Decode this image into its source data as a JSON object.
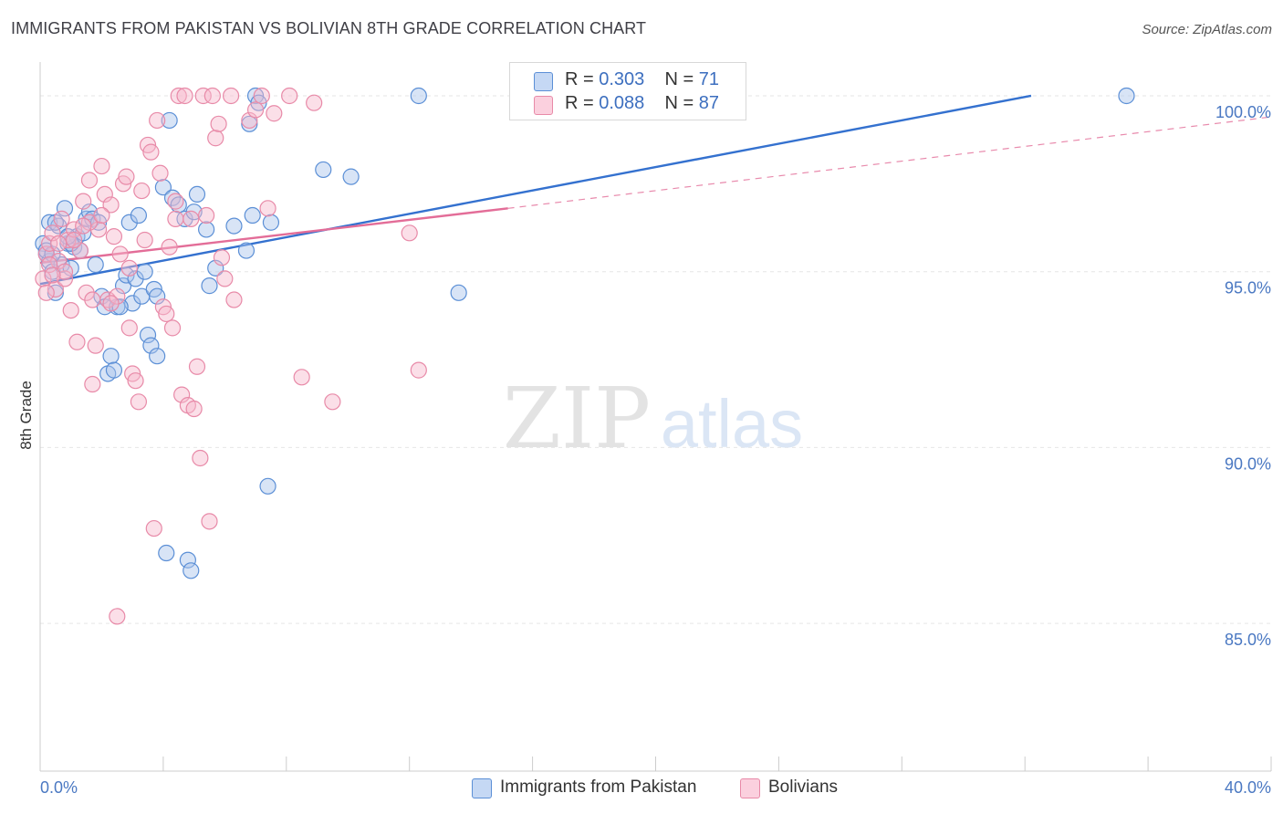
{
  "title": "IMMIGRANTS FROM PAKISTAN VS BOLIVIAN 8TH GRADE CORRELATION CHART",
  "source": "Source: ZipAtlas.com",
  "watermark": {
    "zip": "ZIP",
    "atlas": "atlas"
  },
  "legend": {
    "rows": [
      {
        "r_label": "R =",
        "r_value": "0.303",
        "n_label": "N =",
        "n_value": "71"
      },
      {
        "r_label": "R =",
        "r_value": "0.088",
        "n_label": "N =",
        "n_value": "87"
      }
    ]
  },
  "bottom_legend": [
    "Immigrants from Pakistan",
    "Bolivians"
  ],
  "colors": {
    "blue_fill": "#a9c4ec",
    "blue_stroke": "#5b8fd6",
    "blue_line": "#3471cf",
    "pink_fill": "#f6b9cc",
    "pink_stroke": "#e88aa8",
    "pink_line": "#e36d98",
    "tick_text": "#4a78c2",
    "grid": "#e6e6e6"
  },
  "chart_data": {
    "type": "scatter",
    "title": "IMMIGRANTS FROM PAKISTAN VS BOLIVIAN 8TH GRADE CORRELATION CHART",
    "xlabel": "",
    "ylabel": "8th Grade",
    "xlim": [
      0,
      40
    ],
    "ylim": [
      80.8,
      100.7
    ],
    "x_tick_labels": [
      "0.0%",
      "40.0%"
    ],
    "y_ticks": [
      100,
      95,
      90,
      85
    ],
    "y_tick_labels": [
      "100.0%",
      "95.0%",
      "90.0%",
      "85.0%"
    ],
    "series": [
      {
        "name": "Immigrants from Pakistan",
        "R": 0.303,
        "N": 71,
        "trend": {
          "x0": 0,
          "y0": 94.65,
          "x1": 32.2,
          "y1": 100.0,
          "style": "solid",
          "x_end": 32.2
        },
        "points": [
          [
            0.1,
            95.8
          ],
          [
            0.2,
            95.5
          ],
          [
            0.3,
            96.4
          ],
          [
            0.3,
            95.3
          ],
          [
            0.4,
            95.0
          ],
          [
            0.5,
            94.4
          ],
          [
            0.6,
            96.3
          ],
          [
            0.7,
            95.2
          ],
          [
            0.8,
            96.8
          ],
          [
            0.9,
            95.8
          ],
          [
            1.0,
            95.1
          ],
          [
            1.1,
            95.7
          ],
          [
            1.2,
            96.0
          ],
          [
            1.3,
            95.6
          ],
          [
            1.4,
            96.1
          ],
          [
            1.5,
            96.5
          ],
          [
            1.6,
            96.7
          ],
          [
            1.7,
            96.5
          ],
          [
            1.8,
            95.2
          ],
          [
            2.0,
            94.3
          ],
          [
            2.1,
            94.0
          ],
          [
            2.2,
            92.1
          ],
          [
            2.3,
            92.6
          ],
          [
            2.4,
            92.2
          ],
          [
            2.5,
            94.0
          ],
          [
            2.7,
            94.6
          ],
          [
            2.8,
            94.9
          ],
          [
            2.9,
            96.4
          ],
          [
            3.0,
            94.1
          ],
          [
            3.1,
            94.8
          ],
          [
            3.2,
            96.6
          ],
          [
            3.3,
            94.3
          ],
          [
            3.4,
            95.0
          ],
          [
            3.5,
            93.2
          ],
          [
            3.6,
            92.9
          ],
          [
            3.7,
            94.5
          ],
          [
            3.8,
            94.3
          ],
          [
            3.8,
            92.6
          ],
          [
            4.0,
            97.4
          ],
          [
            4.1,
            87.0
          ],
          [
            4.2,
            99.3
          ],
          [
            4.3,
            97.1
          ],
          [
            4.5,
            96.9
          ],
          [
            4.7,
            96.5
          ],
          [
            4.8,
            86.8
          ],
          [
            4.9,
            86.5
          ],
          [
            5.0,
            96.7
          ],
          [
            5.1,
            97.2
          ],
          [
            5.4,
            96.2
          ],
          [
            5.5,
            94.6
          ],
          [
            5.7,
            95.1
          ],
          [
            6.3,
            96.3
          ],
          [
            6.7,
            95.6
          ],
          [
            6.8,
            99.2
          ],
          [
            6.9,
            96.6
          ],
          [
            7.0,
            100.0
          ],
          [
            7.1,
            99.8
          ],
          [
            7.4,
            88.9
          ],
          [
            7.5,
            96.4
          ],
          [
            9.2,
            97.9
          ],
          [
            10.1,
            97.7
          ],
          [
            12.3,
            100.0
          ],
          [
            13.6,
            94.4
          ],
          [
            35.3,
            100.0
          ],
          [
            0.2,
            95.6
          ],
          [
            0.5,
            96.4
          ],
          [
            1.0,
            95.8
          ],
          [
            1.9,
            96.4
          ],
          [
            2.6,
            94.0
          ],
          [
            0.9,
            96.0
          ],
          [
            0.4,
            95.5
          ]
        ]
      },
      {
        "name": "Bolivians",
        "R": 0.088,
        "N": 87,
        "trend": {
          "x0": 0,
          "y0": 95.25,
          "x1": 15.2,
          "y1": 96.8,
          "style": "solid",
          "dash_to": {
            "x": 40,
            "y": 99.4
          }
        },
        "points": [
          [
            0.1,
            94.8
          ],
          [
            0.2,
            95.5
          ],
          [
            0.3,
            95.8
          ],
          [
            0.4,
            96.1
          ],
          [
            0.5,
            94.5
          ],
          [
            0.6,
            95.3
          ],
          [
            0.7,
            96.5
          ],
          [
            0.8,
            94.8
          ],
          [
            0.9,
            95.9
          ],
          [
            1.0,
            93.9
          ],
          [
            1.1,
            96.2
          ],
          [
            1.2,
            93.0
          ],
          [
            1.3,
            95.6
          ],
          [
            1.4,
            97.0
          ],
          [
            1.5,
            94.4
          ],
          [
            1.6,
            97.6
          ],
          [
            1.7,
            91.8
          ],
          [
            1.8,
            92.9
          ],
          [
            1.9,
            96.2
          ],
          [
            2.0,
            98.0
          ],
          [
            2.1,
            97.2
          ],
          [
            2.2,
            94.2
          ],
          [
            2.3,
            96.9
          ],
          [
            2.4,
            96.0
          ],
          [
            2.5,
            94.3
          ],
          [
            2.6,
            95.5
          ],
          [
            2.7,
            97.5
          ],
          [
            2.8,
            97.7
          ],
          [
            2.9,
            93.4
          ],
          [
            3.0,
            92.1
          ],
          [
            3.1,
            91.9
          ],
          [
            3.2,
            91.3
          ],
          [
            3.3,
            97.3
          ],
          [
            3.4,
            95.9
          ],
          [
            3.5,
            98.6
          ],
          [
            3.6,
            98.4
          ],
          [
            3.7,
            87.7
          ],
          [
            3.8,
            99.3
          ],
          [
            3.9,
            97.8
          ],
          [
            4.0,
            94.0
          ],
          [
            4.1,
            93.8
          ],
          [
            4.2,
            95.7
          ],
          [
            4.3,
            93.4
          ],
          [
            4.4,
            97.0
          ],
          [
            4.5,
            100.0
          ],
          [
            4.6,
            91.5
          ],
          [
            4.7,
            100.0
          ],
          [
            4.8,
            91.2
          ],
          [
            4.9,
            96.5
          ],
          [
            5.0,
            91.1
          ],
          [
            5.1,
            92.3
          ],
          [
            5.2,
            89.7
          ],
          [
            5.3,
            100.0
          ],
          [
            5.4,
            96.6
          ],
          [
            5.5,
            87.9
          ],
          [
            5.6,
            100.0
          ],
          [
            5.7,
            98.8
          ],
          [
            5.8,
            99.2
          ],
          [
            5.9,
            95.4
          ],
          [
            6.0,
            94.8
          ],
          [
            6.2,
            100.0
          ],
          [
            6.3,
            94.2
          ],
          [
            6.8,
            99.3
          ],
          [
            7.0,
            99.6
          ],
          [
            7.2,
            100.0
          ],
          [
            7.4,
            96.8
          ],
          [
            7.6,
            99.5
          ],
          [
            8.1,
            100.0
          ],
          [
            8.5,
            92.0
          ],
          [
            8.9,
            99.8
          ],
          [
            9.5,
            91.3
          ],
          [
            12.0,
            96.1
          ],
          [
            12.3,
            92.2
          ],
          [
            2.5,
            85.2
          ],
          [
            1.6,
            96.4
          ],
          [
            0.2,
            94.4
          ],
          [
            0.3,
            95.2
          ],
          [
            2.3,
            94.1
          ],
          [
            1.1,
            95.9
          ],
          [
            1.7,
            94.2
          ],
          [
            4.4,
            96.5
          ],
          [
            0.6,
            95.8
          ],
          [
            0.8,
            95.0
          ],
          [
            2.0,
            96.6
          ],
          [
            2.9,
            95.1
          ],
          [
            1.4,
            96.3
          ],
          [
            0.4,
            94.9
          ]
        ]
      }
    ]
  }
}
